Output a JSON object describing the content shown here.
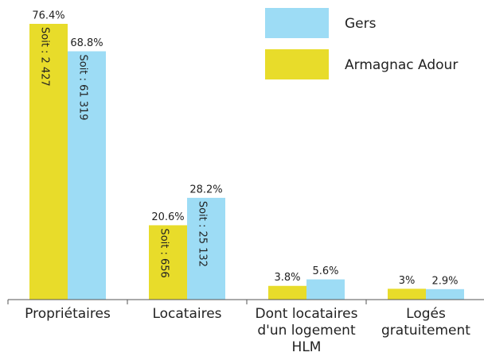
{
  "chart_data": {
    "type": "bar",
    "categories": [
      [
        "Propriétaires"
      ],
      [
        "Locataires"
      ],
      [
        "Dont locataires",
        "d'un logement",
        "HLM"
      ],
      [
        "Logés",
        "gratuitement"
      ]
    ],
    "series": [
      {
        "name": "Armagnac Adour",
        "color": "#e8dc2a",
        "values": [
          76.4,
          20.6,
          3.8,
          3
        ],
        "value_labels": [
          "76.4%",
          "20.6%",
          "3.8%",
          "3%"
        ],
        "inner_labels": [
          "Soit : 2 427",
          "Soit : 656",
          null,
          null
        ]
      },
      {
        "name": "Gers",
        "color": "#9ddcf5",
        "values": [
          68.8,
          28.2,
          5.6,
          2.9
        ],
        "value_labels": [
          "68.8%",
          "28.2%",
          "5.6%",
          "2.9%"
        ],
        "inner_labels": [
          "Soit : 61 319",
          "Soit : 25 132",
          null,
          null
        ]
      }
    ]
  }
}
